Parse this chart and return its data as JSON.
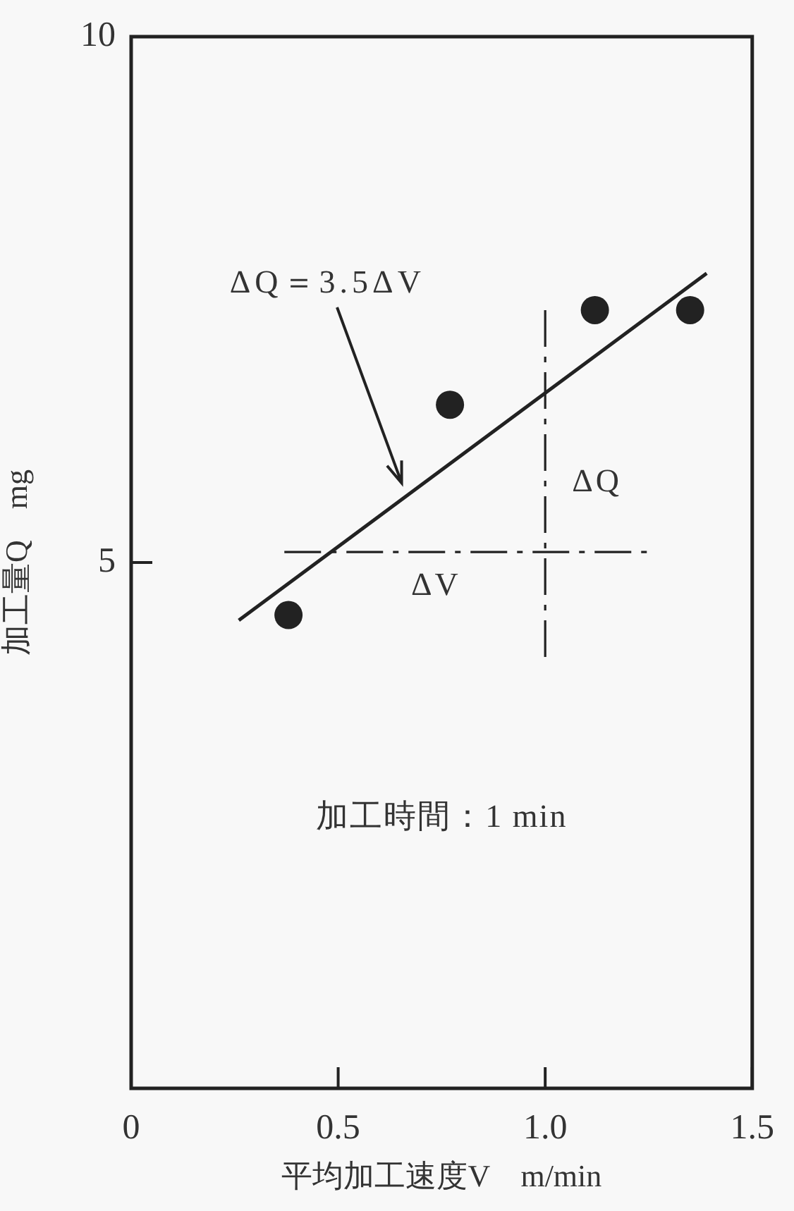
{
  "chart_data": {
    "type": "scatter",
    "xlabel": "平均加工速度V　m/min",
    "ylabel": "加工量Q　mg",
    "xlim": [
      0,
      1.5
    ],
    "xticks": [
      0,
      0.5,
      {
        "value": 1,
        "label": "1.0"
      },
      1.5
    ],
    "ylim": [
      0,
      10
    ],
    "yticks": [
      5,
      10
    ],
    "series": [
      {
        "type": "scatter",
        "color": "#222222",
        "marker": "circle",
        "x": [
          0.38,
          0.77,
          1.12,
          1.35
        ],
        "values": [
          4.5,
          6.5,
          7.4,
          7.4
        ]
      },
      {
        "type": "line",
        "color": "#222222",
        "marker": "none",
        "x": [
          0.26,
          1.39
        ],
        "values": [
          4.45,
          7.75
        ]
      },
      {
        "type": "line",
        "color": "#222222",
        "marker": "none",
        "line_style": "dashed",
        "x": [
          0.37,
          1.25
        ],
        "values": [
          5.1,
          5.1
        ]
      },
      {
        "type": "line",
        "color": "#222222",
        "marker": "none",
        "line_style": "dashed",
        "x": [
          1,
          1
        ],
        "values": [
          7.4,
          4.05
        ]
      }
    ],
    "annotations": [
      "ΔQ＝3.5ΔV",
      "ΔV",
      "ΔQ",
      "加工時間：1 min"
    ]
  }
}
